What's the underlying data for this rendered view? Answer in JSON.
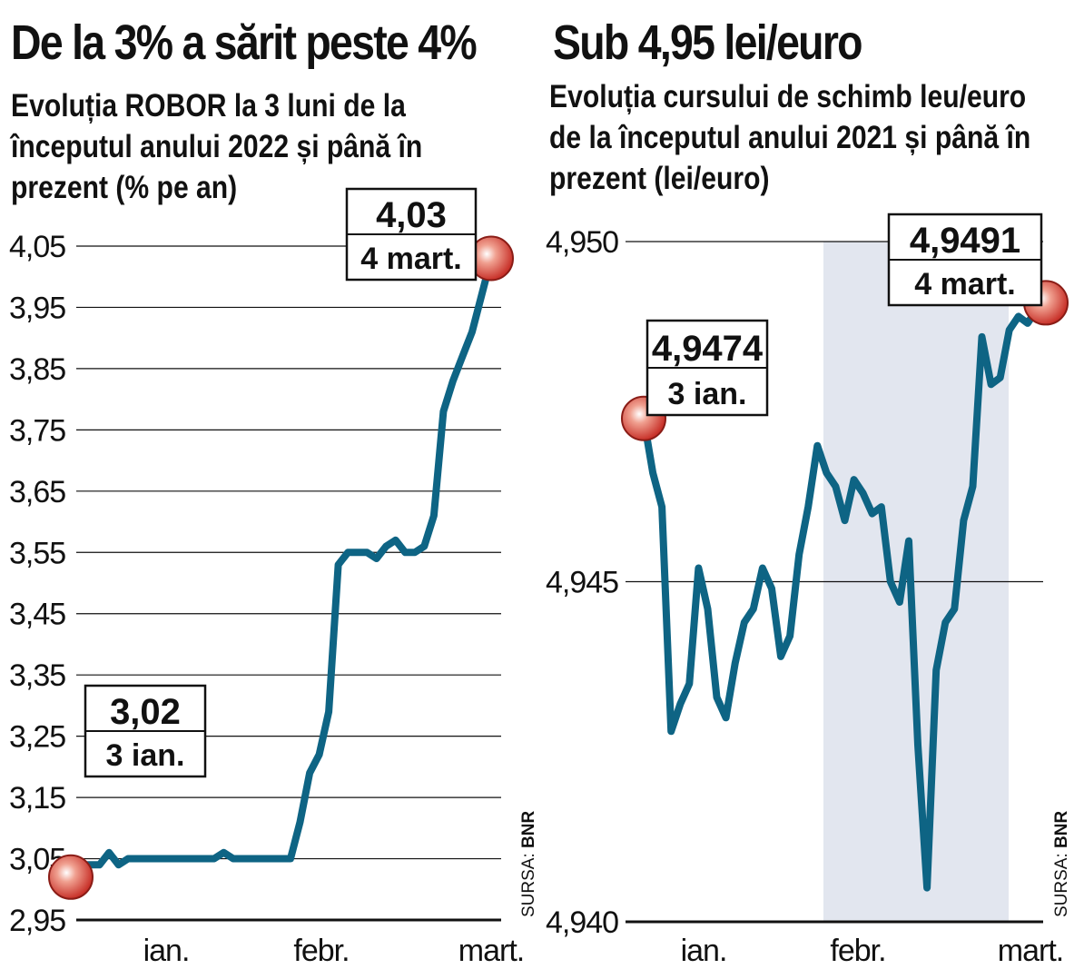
{
  "chart_data": [
    {
      "type": "line",
      "title": "De la 3% a sărit peste 4%",
      "subtitle": "Evoluția ROBOR la 3 luni de la începutul anului 2022 și până în prezent (% pe an)",
      "yticks": [
        "4,05",
        "3,95",
        "3,85",
        "3,75",
        "3,65",
        "3,55",
        "3,45",
        "3,35",
        "3,25",
        "3,15",
        "3,05",
        "2,95"
      ],
      "ylim": [
        2.95,
        4.05
      ],
      "xticks": [
        "ian.",
        "febr.",
        "mart."
      ],
      "grid": true,
      "source_label": "SURSA:",
      "source": "BNR",
      "series": [
        {
          "values": [
            3.02,
            3.04,
            3.04,
            3.04,
            3.06,
            3.04,
            3.05,
            3.05,
            3.05,
            3.05,
            3.05,
            3.05,
            3.05,
            3.05,
            3.05,
            3.05,
            3.06,
            3.05,
            3.05,
            3.05,
            3.05,
            3.05,
            3.05,
            3.05,
            3.11,
            3.19,
            3.22,
            3.29,
            3.53,
            3.55,
            3.55,
            3.55,
            3.54,
            3.56,
            3.57,
            3.55,
            3.55,
            3.56,
            3.61,
            3.78,
            3.83,
            3.87,
            3.91,
            3.97,
            4.03
          ]
        }
      ],
      "annotations": [
        {
          "value": "3,02",
          "date": "3 ian."
        },
        {
          "value": "4,03",
          "date": "4 mart."
        }
      ],
      "line_color": "#0e6484",
      "marker_color": "#c8322a"
    },
    {
      "type": "line",
      "title": "Sub 4,95 lei/euro",
      "subtitle": "Evoluția cursului de schimb leu/euro de la începutul anului 2021 și până în prezent (lei/euro)",
      "yticks": [
        "4,950",
        "4,945",
        "4,940"
      ],
      "ylim": [
        4.94,
        4.95
      ],
      "xticks": [
        "ian.",
        "febr.",
        "mart."
      ],
      "grid": true,
      "source_label": "SURSA:",
      "source": "BNR",
      "shaded_period": "febr.",
      "series": [
        {
          "values": [
            4.9474,
            4.9466,
            4.9461,
            4.9428,
            4.9432,
            4.9435,
            4.9452,
            4.9446,
            4.9433,
            4.943,
            4.9438,
            4.9444,
            4.9446,
            4.9452,
            4.9449,
            4.9439,
            4.9442,
            4.9454,
            4.9461,
            4.947,
            4.9466,
            4.9464,
            4.9459,
            4.9465,
            4.9463,
            4.946,
            4.9461,
            4.945,
            4.9447,
            4.9456,
            4.9426,
            4.9405,
            4.9437,
            4.9444,
            4.9446,
            4.9459,
            4.9464,
            4.9486,
            4.9479,
            4.948,
            4.9487,
            4.9489,
            4.9488,
            4.949,
            4.9491
          ]
        }
      ],
      "annotations": [
        {
          "value": "4,9474",
          "date": "3 ian."
        },
        {
          "value": "4,9491",
          "date": "4 mart."
        }
      ],
      "line_color": "#0e6484",
      "marker_color": "#c8322a",
      "shade_color": "#e2e6ef"
    }
  ]
}
